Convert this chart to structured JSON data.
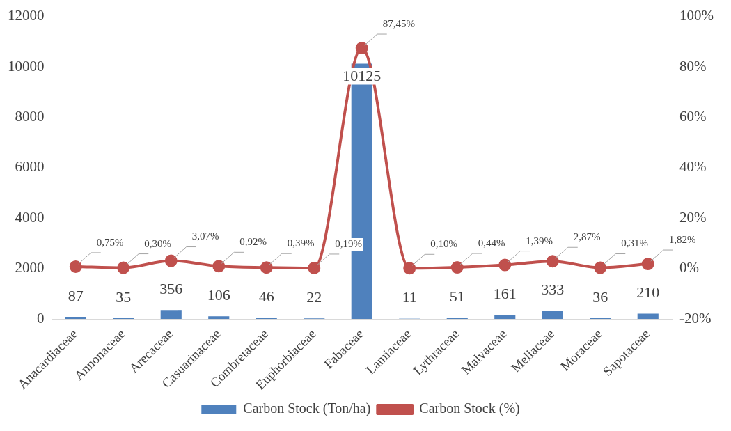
{
  "chart_data": {
    "type": "bar",
    "categories": [
      "Anacardiaceae",
      "Annonaceae",
      "Arecaceae",
      "Casuarinaceae",
      "Combretaceae",
      "Euphorbiaceae",
      "Fabaceae",
      "Lamiaceae",
      "Lythraceae",
      "Malvaceae",
      "Meliaceae",
      "Moraceae",
      "Sapotaceae"
    ],
    "series": [
      {
        "name": "Carbon Stock (Ton/ha)",
        "color": "#4f81bd",
        "values": [
          87,
          35,
          356,
          106,
          46,
          22,
          10125,
          11,
          51,
          161,
          333,
          36,
          210
        ],
        "value_labels": [
          "87",
          "35",
          "356",
          "106",
          "46",
          "22",
          "10125",
          "11",
          "51",
          "161",
          "333",
          "36",
          "210"
        ]
      },
      {
        "name": "Carbon Stock (%)",
        "type": "line",
        "axis": "y2",
        "color": "#c0504d",
        "values": [
          0.75,
          0.3,
          3.07,
          0.92,
          0.39,
          0.19,
          87.45,
          0.1,
          0.44,
          1.39,
          2.87,
          0.31,
          1.82
        ],
        "value_labels": [
          "0,75%",
          "0,30%",
          "3,07%",
          "0,92%",
          "0,39%",
          "0,19%",
          "87,45%",
          "0,10%",
          "0,44%",
          "1,39%",
          "2,87%",
          "0,31%",
          "1,82%"
        ]
      }
    ],
    "ylim": [
      0,
      12000
    ],
    "yticks": [
      0,
      2000,
      4000,
      6000,
      8000,
      10000,
      12000
    ],
    "y2lim": [
      -20,
      100
    ],
    "y2ticks": [
      {
        "value": -20,
        "label": "-20%"
      },
      {
        "value": 0,
        "label": "0%"
      },
      {
        "value": 20,
        "label": "20%"
      },
      {
        "value": 40,
        "label": "40%"
      },
      {
        "value": 60,
        "label": "60%"
      },
      {
        "value": 80,
        "label": "80%"
      },
      {
        "value": 100,
        "label": "100%"
      }
    ],
    "grid": false,
    "legend": "bottom",
    "marker": "circle",
    "line_style": "solid"
  }
}
